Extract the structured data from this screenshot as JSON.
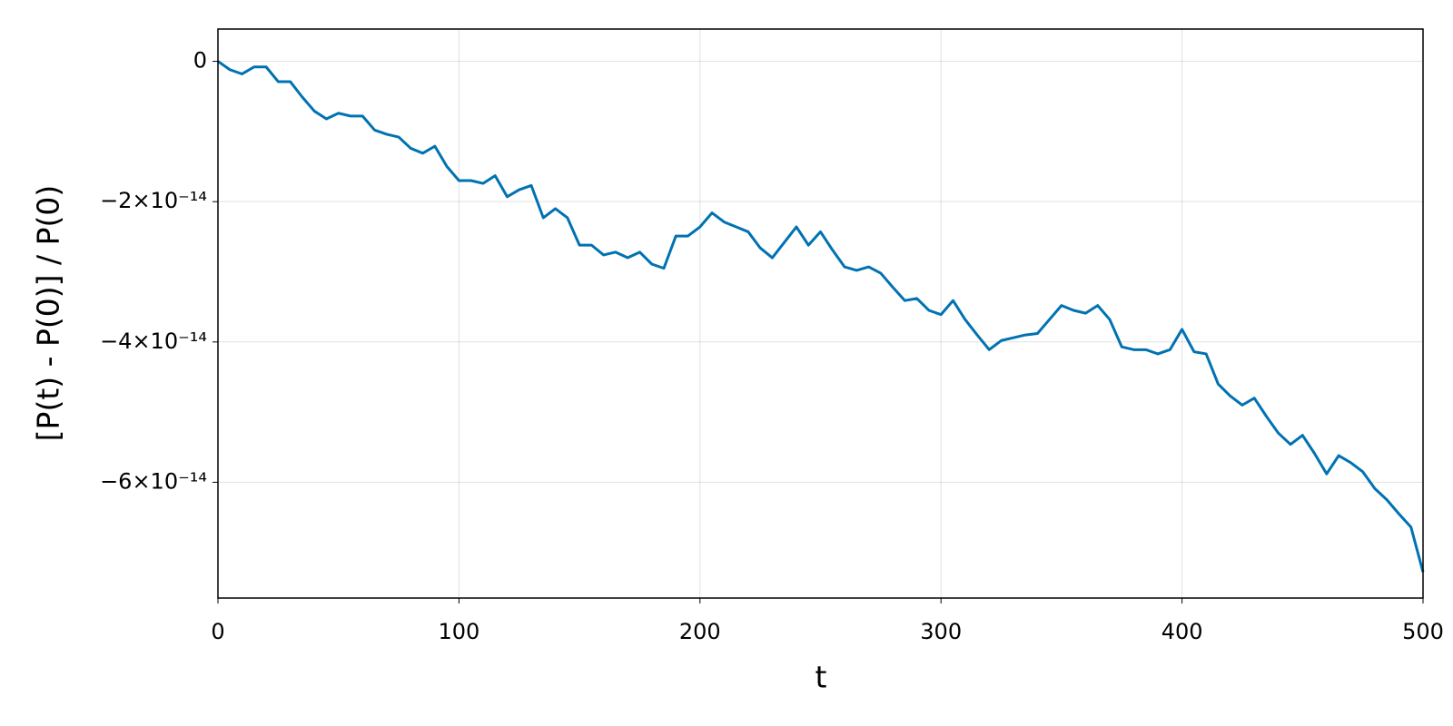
{
  "chart_data": {
    "type": "line",
    "xlabel": "t",
    "ylabel": "[P(t) - P(0)] / P(0)",
    "x": [
      0,
      5,
      10,
      15,
      20,
      25,
      30,
      35,
      40,
      45,
      50,
      55,
      60,
      65,
      70,
      75,
      80,
      85,
      90,
      95,
      100,
      105,
      110,
      115,
      120,
      125,
      130,
      135,
      140,
      145,
      150,
      155,
      160,
      165,
      170,
      175,
      180,
      185,
      190,
      195,
      200,
      205,
      210,
      215,
      220,
      225,
      230,
      235,
      240,
      245,
      250,
      255,
      260,
      265,
      270,
      275,
      280,
      285,
      290,
      295,
      300,
      305,
      310,
      315,
      320,
      325,
      330,
      335,
      340,
      345,
      350,
      355,
      360,
      365,
      370,
      375,
      380,
      385,
      390,
      395,
      400,
      405,
      410,
      415,
      420,
      425,
      430,
      435,
      440,
      445,
      450,
      455,
      460,
      465,
      470,
      475,
      480,
      485,
      490,
      495,
      500
    ],
    "values": [
      0,
      -1.2e-15,
      -1.8e-15,
      -8e-16,
      -8e-16,
      -2.9e-15,
      -2.9e-15,
      -5.1e-15,
      -7.1e-15,
      -8.2e-15,
      -7.4e-15,
      -7.8e-15,
      -7.8e-15,
      -9.8e-15,
      -1.04e-14,
      -1.08e-14,
      -1.24e-14,
      -1.31e-14,
      -1.21e-14,
      -1.5e-14,
      -1.7e-14,
      -1.7e-14,
      -1.74e-14,
      -1.63e-14,
      -1.93e-14,
      -1.83e-14,
      -1.77e-14,
      -2.23e-14,
      -2.1e-14,
      -2.23e-14,
      -2.62e-14,
      -2.62e-14,
      -2.76e-14,
      -2.72e-14,
      -2.8e-14,
      -2.72e-14,
      -2.89e-14,
      -2.95e-14,
      -2.49e-14,
      -2.49e-14,
      -2.36e-14,
      -2.16e-14,
      -2.29e-14,
      -2.36e-14,
      -2.43e-14,
      -2.66e-14,
      -2.8e-14,
      -2.58e-14,
      -2.36e-14,
      -2.62e-14,
      -2.43e-14,
      -2.69e-14,
      -2.93e-14,
      -2.98e-14,
      -2.93e-14,
      -3.02e-14,
      -3.22e-14,
      -3.41e-14,
      -3.38e-14,
      -3.55e-14,
      -3.61e-14,
      -3.41e-14,
      -3.68e-14,
      -3.9e-14,
      -4.11e-14,
      -3.98e-14,
      -3.94e-14,
      -3.9e-14,
      -3.88e-14,
      -3.68e-14,
      -3.48e-14,
      -3.55e-14,
      -3.59e-14,
      -3.48e-14,
      -3.68e-14,
      -4.07e-14,
      -4.11e-14,
      -4.11e-14,
      -4.17e-14,
      -4.11e-14,
      -3.82e-14,
      -4.14e-14,
      -4.17e-14,
      -4.6e-14,
      -4.77e-14,
      -4.9e-14,
      -4.8e-14,
      -5.06e-14,
      -5.3e-14,
      -5.46e-14,
      -5.33e-14,
      -5.59e-14,
      -5.88e-14,
      -5.62e-14,
      -5.72e-14,
      -5.85e-14,
      -6.09e-14,
      -6.25e-14,
      -6.45e-14,
      -6.64e-14,
      -7.28e-14
    ],
    "color": "#0072b2",
    "xlim": [
      0,
      500
    ],
    "xticks": [
      0,
      100,
      200,
      300,
      400,
      500
    ],
    "ylim": [
      -7.65e-14,
      4.6e-15
    ],
    "yticks": [
      0,
      {
        "value": -2e-14,
        "label": "−2×10⁻¹⁴"
      },
      {
        "value": -4e-14,
        "label": "−4×10⁻¹⁴"
      },
      {
        "value": -6e-14,
        "label": "−6×10⁻¹⁴"
      }
    ],
    "grid": true
  }
}
